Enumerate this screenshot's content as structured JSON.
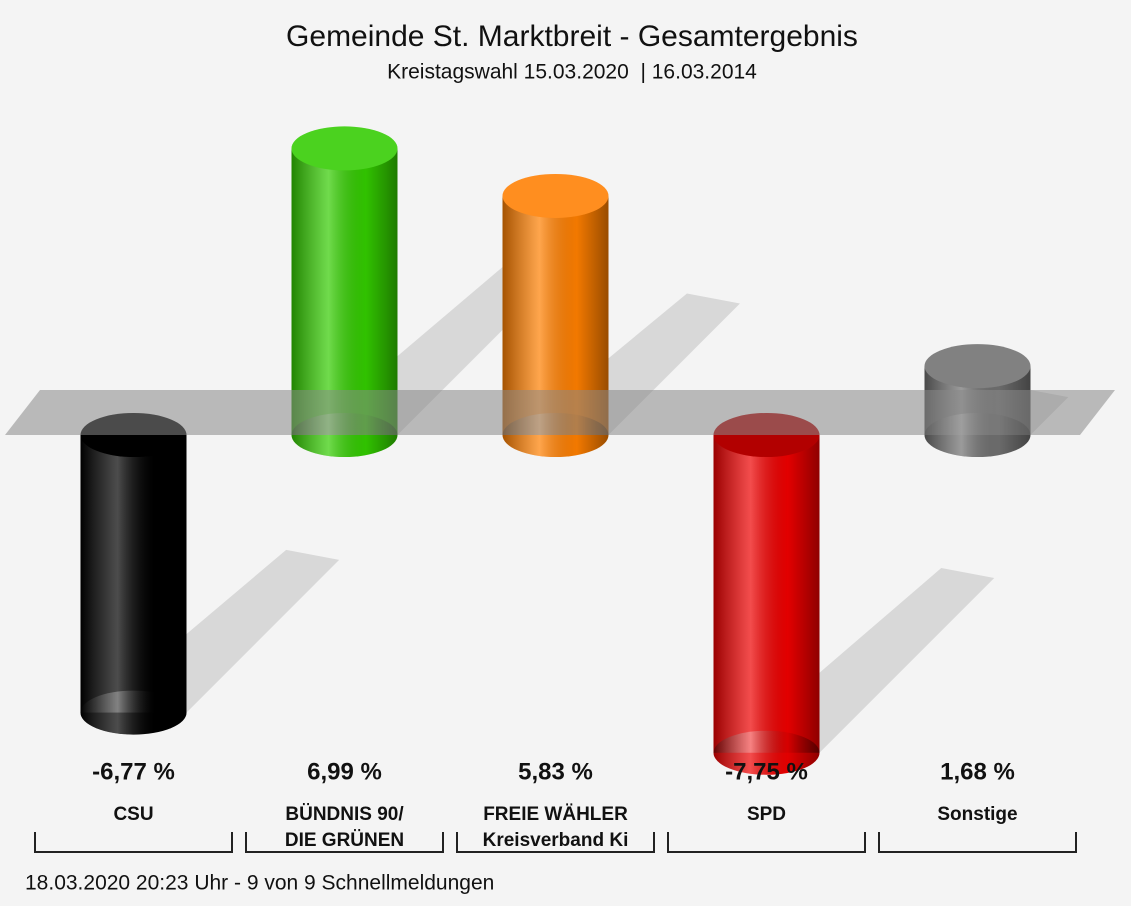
{
  "chart_data": {
    "type": "bar",
    "title": "Gemeinde St. Marktbreit - Gesamtergebnis",
    "subtitle": "Kreistagswahl 15.03.2020  | 16.03.2014",
    "categories": [
      [
        "CSU"
      ],
      [
        "BÜNDNIS 90/",
        "DIE GRÜNEN"
      ],
      [
        "FREIE WÄHLER",
        "Kreisverband Ki"
      ],
      [
        "SPD"
      ],
      [
        "Sonstige"
      ]
    ],
    "values": [
      -6.77,
      6.99,
      5.83,
      -7.75,
      1.68
    ],
    "value_labels": [
      "-6,77 %",
      "6,99 %",
      "5,83 %",
      "-7,75 %",
      "1,68 %"
    ],
    "colors": [
      "#000000",
      "#33cc00",
      "#ff7f00",
      "#ee0000",
      "#707070"
    ],
    "footer": "18.03.2020 20:23 Uhr - 9 von 9 Schnellmeldungen"
  }
}
